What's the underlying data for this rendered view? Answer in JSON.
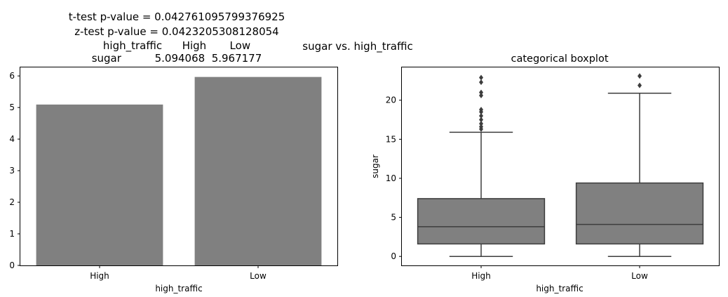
{
  "figure": {
    "suptitle": "sugar vs. high_traffic",
    "stats_text": [
      "t-test p-value = 0.042761095799376925",
      "z-test p-value = 0.0423205308128054",
      "high_traffic      High       Low",
      "sugar          5.094068  5.967177"
    ]
  },
  "colors": {
    "bar": "#808080",
    "box": "#808080",
    "line": "#3d3d3d"
  },
  "chart_data": [
    {
      "type": "bar",
      "title": "",
      "xlabel": "high_traffic",
      "ylabel": "",
      "categories": [
        "High",
        "Low"
      ],
      "values": [
        5.094068,
        5.967177
      ],
      "ylim": [
        0,
        6.27
      ],
      "yticks": [
        0,
        1,
        2,
        3,
        4,
        5,
        6
      ],
      "grid": false
    },
    {
      "type": "boxplot",
      "title": "categorical boxplot",
      "xlabel": "high_traffic",
      "ylabel": "sugar",
      "categories": [
        "High",
        "Low"
      ],
      "boxes": [
        {
          "name": "High",
          "whisker_low": 0.0,
          "q1": 1.6,
          "median": 3.8,
          "q3": 7.4,
          "whisker_high": 15.9,
          "outliers": [
            16.3,
            16.6,
            17.0,
            17.5,
            18.0,
            18.5,
            18.8,
            20.6,
            21.0,
            22.3,
            22.9
          ]
        },
        {
          "name": "Low",
          "whisker_low": 0.0,
          "q1": 1.6,
          "median": 4.1,
          "q3": 9.4,
          "whisker_high": 20.9,
          "outliers": [
            21.9,
            23.1
          ]
        }
      ],
      "ylim": [
        -1.15,
        24.2
      ],
      "yticks": [
        0,
        5,
        10,
        15,
        20
      ],
      "grid": false
    }
  ]
}
